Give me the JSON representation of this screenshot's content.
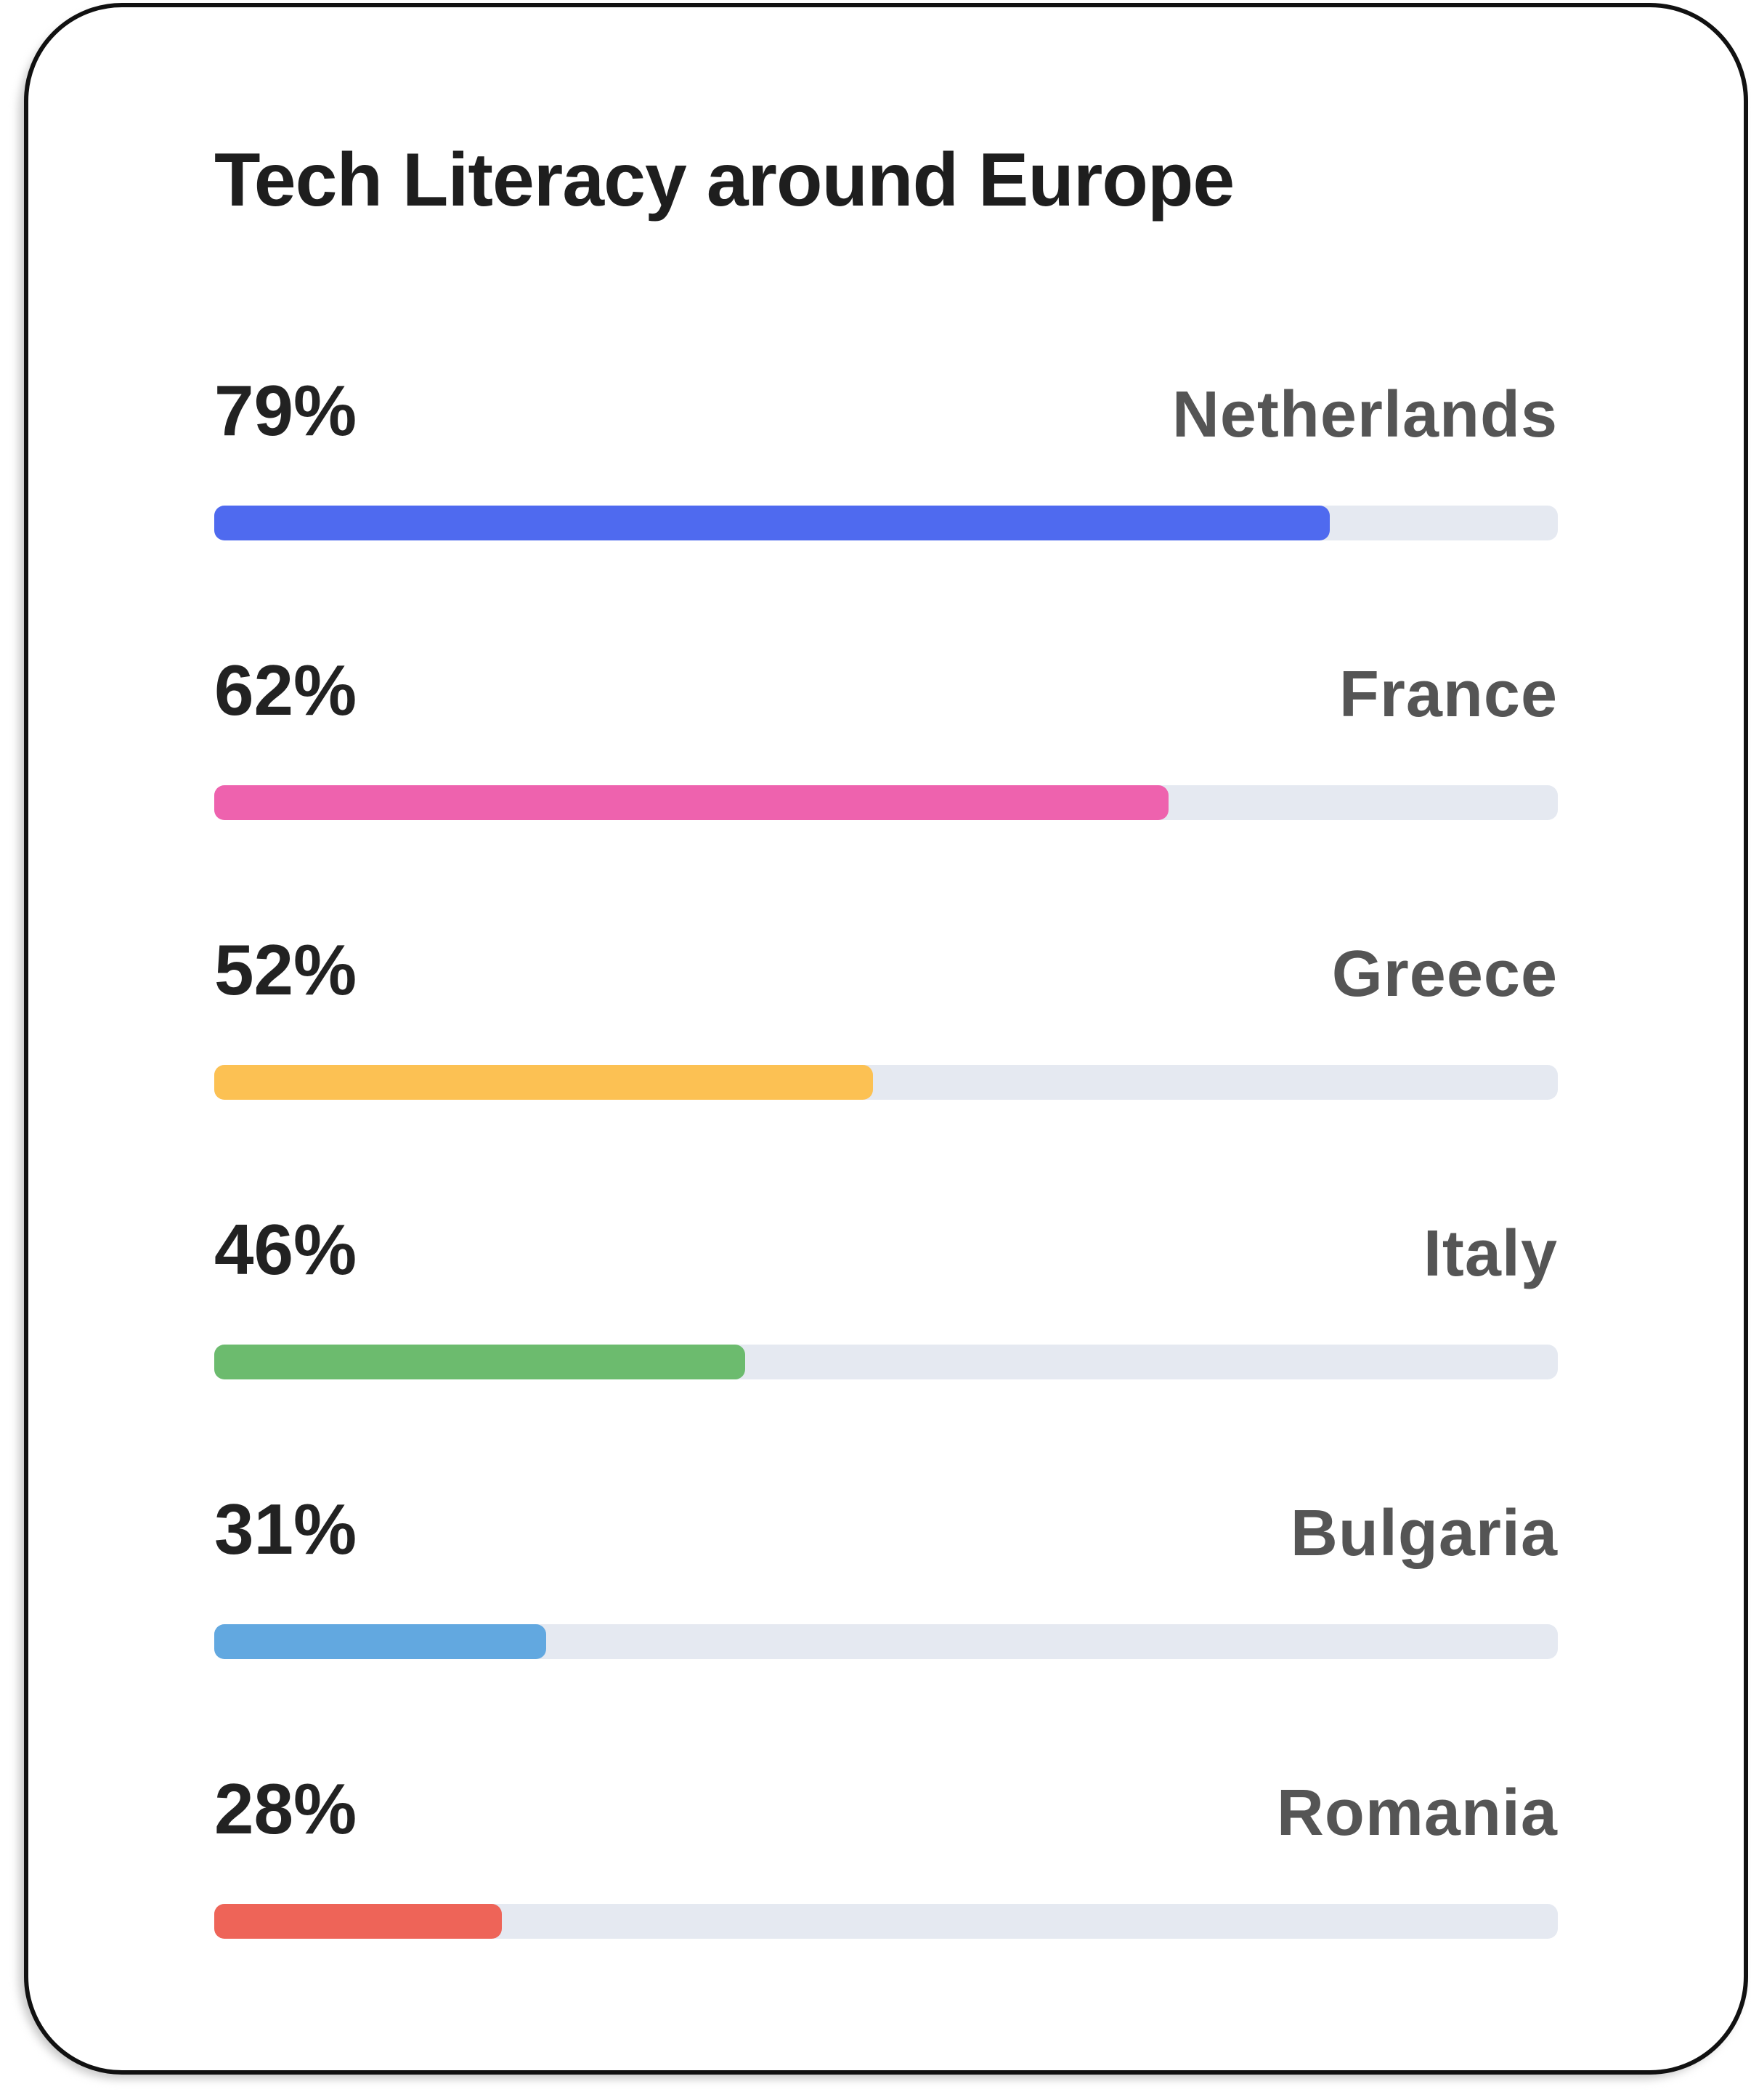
{
  "chart_data": {
    "type": "bar",
    "orientation": "horizontal",
    "title": "Tech Literacy around Europe",
    "categories": [
      "Netherlands",
      "France",
      "Greece",
      "Italy",
      "Bulgaria",
      "Romania"
    ],
    "values": [
      79,
      62,
      52,
      46,
      31,
      28
    ],
    "labels": [
      "79%",
      "62%",
      "52%",
      "46%",
      "31%",
      "28%"
    ],
    "bar_fill_fraction": [
      0.83,
      0.71,
      0.49,
      0.395,
      0.247,
      0.214
    ],
    "colors": [
      "#4f6aef",
      "#ee62ae",
      "#fcc153",
      "#6cbb6e",
      "#62a8e0",
      "#ee6458"
    ],
    "track_color": "#e5e9f1",
    "ylim": [
      0,
      100
    ],
    "grid": false
  }
}
